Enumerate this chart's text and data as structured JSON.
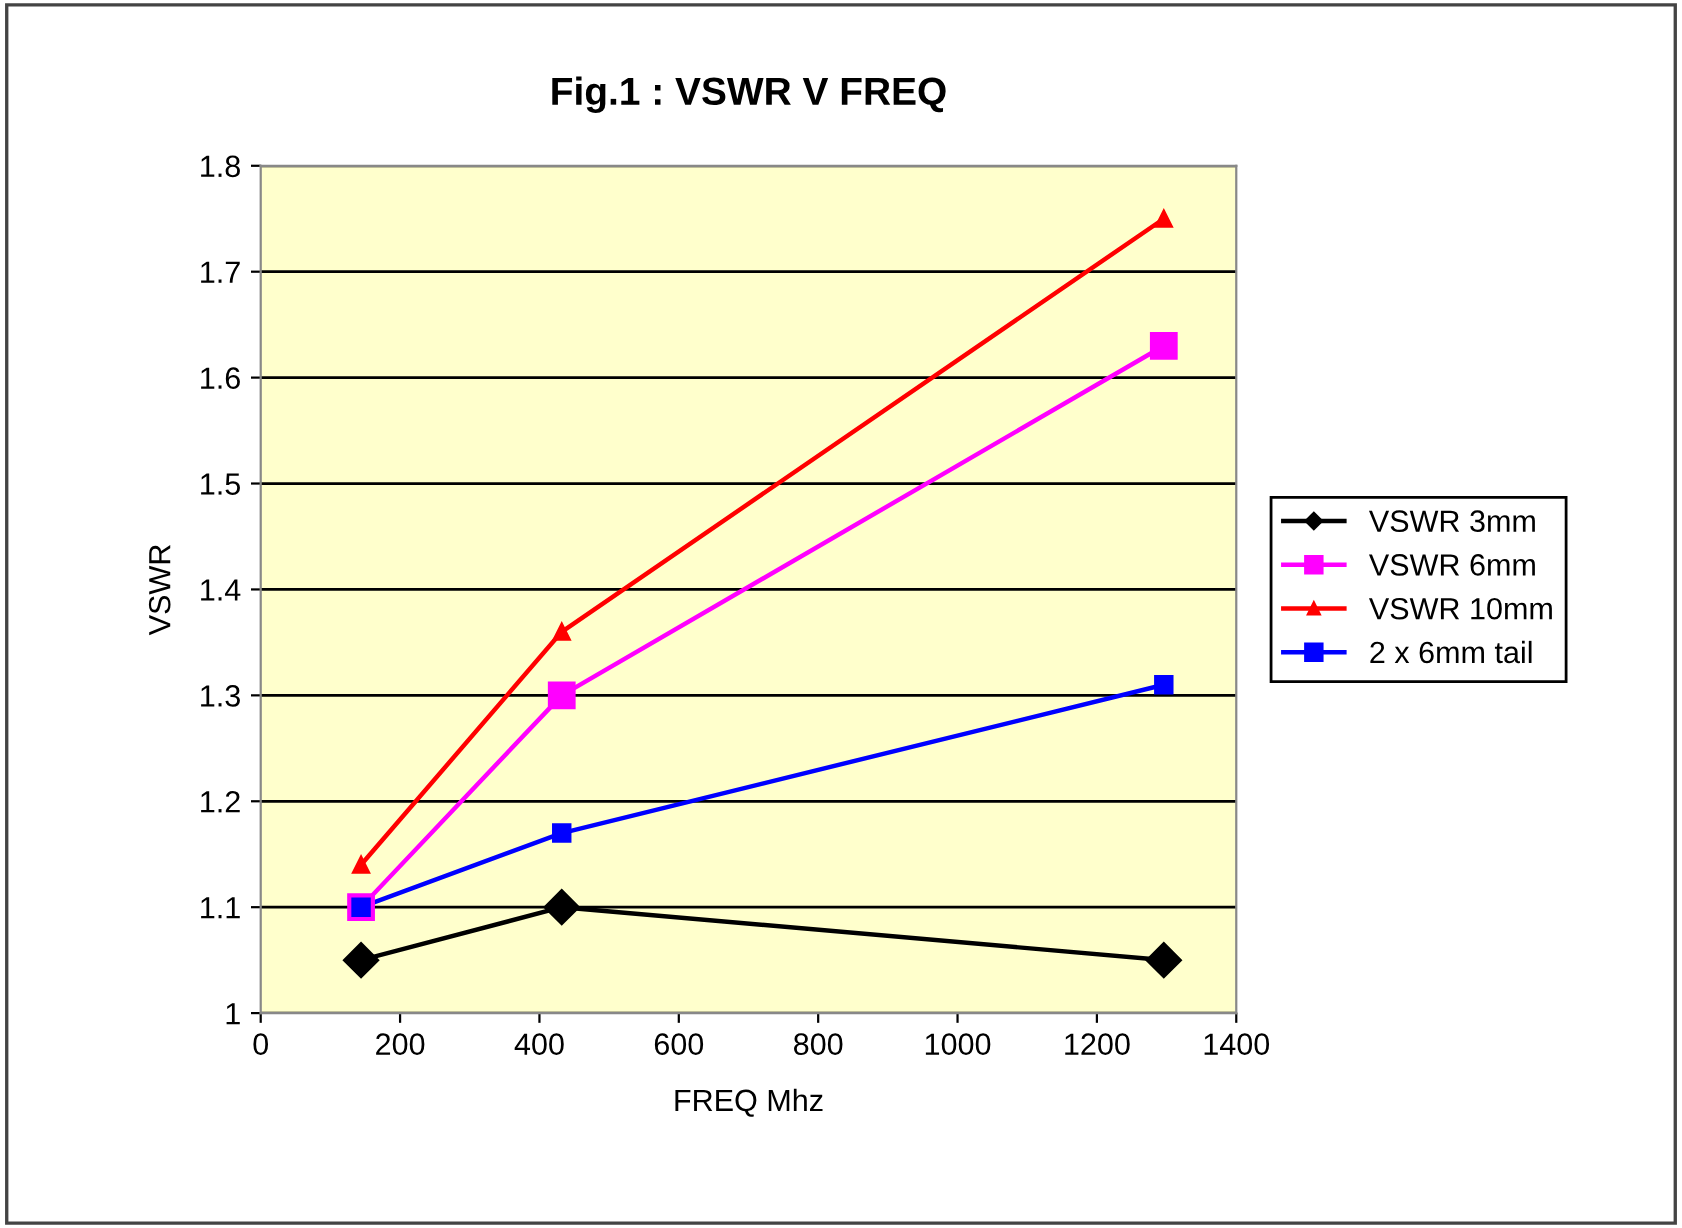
{
  "chart_data": {
    "type": "line",
    "title": "Fig.1 : VSWR V FREQ",
    "xlabel": "FREQ Mhz",
    "ylabel": "VSWR",
    "xlim": [
      0,
      1400
    ],
    "xticks": [
      0,
      200,
      400,
      600,
      800,
      1000,
      1200,
      1400
    ],
    "ylim": [
      1,
      1.8
    ],
    "yticks": [
      1,
      1.1,
      1.2,
      1.3,
      1.4,
      1.5,
      1.6,
      1.7,
      1.8
    ],
    "grid": "y",
    "legend": "right",
    "series": [
      {
        "name": "VSWR 3mm",
        "color": "#000000",
        "marker": "diamond",
        "x": [
          144,
          432,
          1296
        ],
        "values": [
          1.05,
          1.1,
          1.05
        ]
      },
      {
        "name": "VSWR 6mm",
        "color": "#ff00ff",
        "marker": "square",
        "x": [
          144,
          432,
          1296
        ],
        "values": [
          1.1,
          1.3,
          1.63
        ]
      },
      {
        "name": "VSWR 10mm",
        "color": "#ff0000",
        "marker": "triangle",
        "x": [
          144,
          432,
          1296
        ],
        "values": [
          1.14,
          1.36,
          1.75
        ]
      },
      {
        "name": "2 x 6mm tail",
        "color": "#0000ff",
        "marker": "square",
        "x": [
          144,
          432,
          1296
        ],
        "values": [
          1.1,
          1.17,
          1.31
        ]
      }
    ]
  }
}
